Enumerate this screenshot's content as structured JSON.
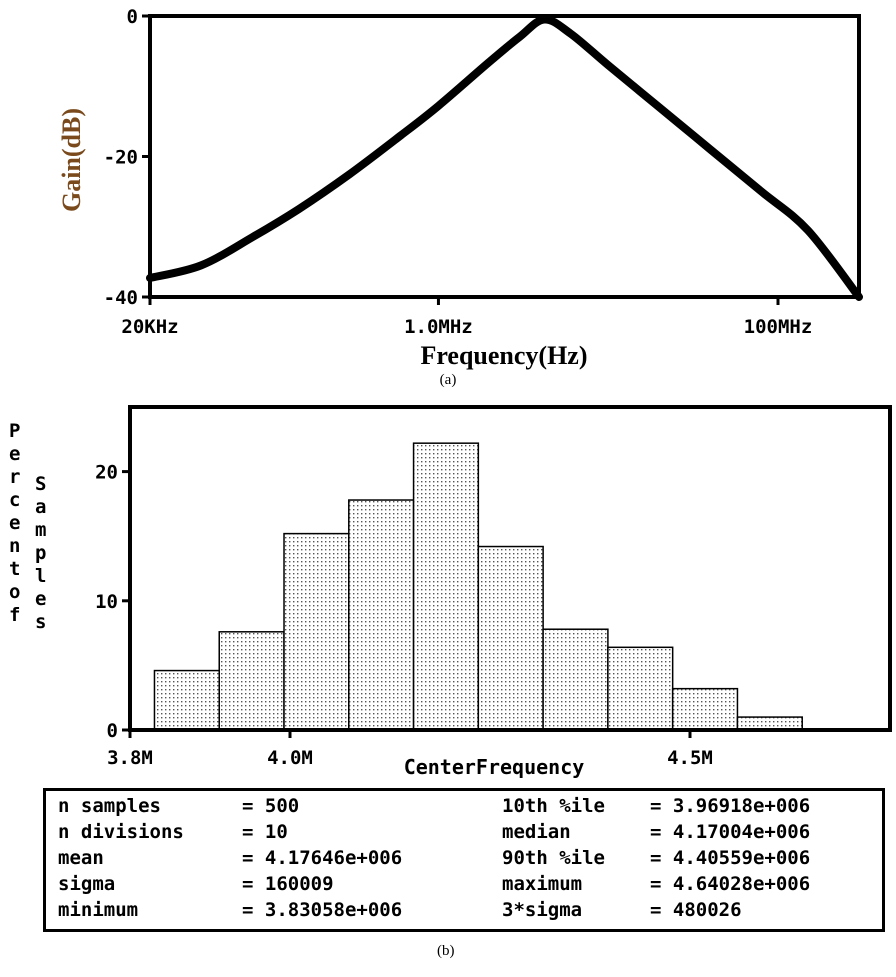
{
  "chart_data": [
    {
      "type": "line",
      "caption": "(a)",
      "xlabel": "Frequency(Hz)",
      "ylabel": "Gain(dB)",
      "xscale": "log",
      "xlim": [
        20000,
        300000000
      ],
      "ylim": [
        -40,
        0
      ],
      "xticks": [
        {
          "value": 20000,
          "label": "20KHz"
        },
        {
          "value": 1000000,
          "label": "1.0MHz"
        },
        {
          "value": 100000000,
          "label": "100MHz"
        }
      ],
      "yticks": [
        {
          "value": 0,
          "label": "0"
        },
        {
          "value": -20,
          "label": "-20"
        },
        {
          "value": -40,
          "label": "-40"
        }
      ],
      "series": [
        {
          "x": [
            20000,
            40000,
            80000,
            150000,
            300000,
            600000,
            1000000,
            2000000,
            3000000,
            4200000,
            6000000,
            10000000,
            20000000,
            40000000,
            80000000,
            150000000,
            300000000
          ],
          "y": [
            -37.3,
            -35.5,
            -31.5,
            -27.5,
            -22.5,
            -17,
            -12.8,
            -6.5,
            -3,
            -0.5,
            -2.5,
            -7,
            -13,
            -19,
            -25,
            -30.5,
            -40
          ]
        }
      ],
      "grid": false
    },
    {
      "type": "bar",
      "caption": "(b)",
      "xlabel": "CenterFrequency",
      "ylabel": "Percent of Samples",
      "xlim": [
        3.8,
        4.75
      ],
      "ylim": [
        0,
        25
      ],
      "xticks": [
        {
          "value": 3.8,
          "label": "3.8M"
        },
        {
          "value": 4.0,
          "label": "4.0M"
        },
        {
          "value": 4.5,
          "label": "4.5M"
        }
      ],
      "yticks": [
        {
          "value": 0,
          "label": "0"
        },
        {
          "value": 10,
          "label": "10"
        },
        {
          "value": 20,
          "label": "20"
        }
      ],
      "bin_edges": [
        3.83058,
        3.91155,
        3.99252,
        4.07349,
        4.15446,
        4.23543,
        4.3164,
        4.39737,
        4.47834,
        4.55931,
        4.64028
      ],
      "values": [
        4.6,
        7.6,
        15.2,
        17.8,
        22.2,
        14.2,
        7.8,
        6.4,
        3.2,
        1.0
      ],
      "grid": false
    }
  ],
  "stats": {
    "left": [
      {
        "label": "n samples",
        "value": "500"
      },
      {
        "label": "n divisions",
        "value": "10"
      },
      {
        "label": "mean",
        "value": "4.17646e+006"
      },
      {
        "label": "sigma",
        "value": "160009"
      },
      {
        "label": "minimum",
        "value": "3.83058e+006"
      }
    ],
    "right": [
      {
        "label": "10th %ile",
        "value": "3.96918e+006"
      },
      {
        "label": "median",
        "value": "4.17004e+006"
      },
      {
        "label": "90th %ile",
        "value": "4.40559e+006"
      },
      {
        "label": "maximum",
        "value": "4.64028e+006"
      },
      {
        "label": "3*sigma",
        "value": "480026"
      }
    ]
  }
}
